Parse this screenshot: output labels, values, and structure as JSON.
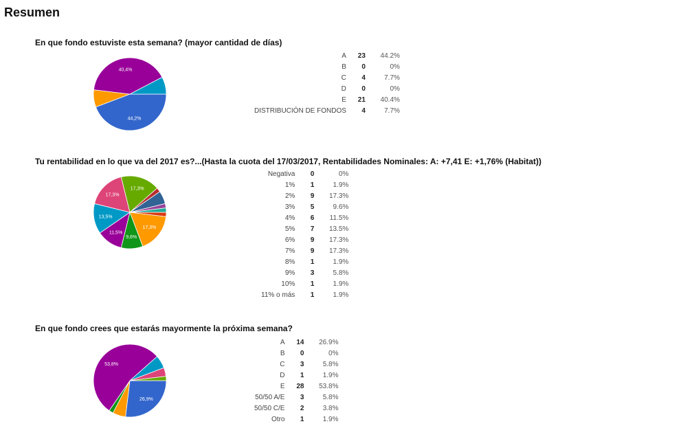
{
  "page": {
    "title": "Resumen"
  },
  "chart_data": [
    {
      "type": "pie",
      "title": "En que fondo estuviste esta semana? (mayor cantidad de días)",
      "categories": [
        "A",
        "B",
        "C",
        "D",
        "E",
        "DISTRIBUCIÓN DE FONDOS"
      ],
      "values": [
        23,
        0,
        4,
        0,
        21,
        4
      ],
      "percents": [
        "44.2%",
        "0%",
        "7.7%",
        "0%",
        "40.4%",
        "7.7%"
      ],
      "slice_labels": [
        "44,2%",
        "",
        "",
        "",
        "40,4%",
        ""
      ],
      "colors": [
        "#3366cc",
        "#dc3912",
        "#ff9900",
        "#109618",
        "#990099",
        "#0099c6"
      ]
    },
    {
      "type": "pie",
      "title": "Tu rentabilidad en lo que va del 2017 es?...(Hasta la cuota del 17/03/2017, Rentabilidades Nominales: A: +7,41 E: +1,76% (Habitat))",
      "categories": [
        "Negativa",
        "1%",
        "2%",
        "3%",
        "4%",
        "5%",
        "6%",
        "7%",
        "8%",
        "9%",
        "10%",
        "11% o más"
      ],
      "values": [
        0,
        1,
        9,
        5,
        6,
        7,
        9,
        9,
        1,
        3,
        1,
        1
      ],
      "percents": [
        "0%",
        "1.9%",
        "17.3%",
        "9.6%",
        "11.5%",
        "13.5%",
        "17.3%",
        "17.3%",
        "1.9%",
        "5.8%",
        "1.9%",
        "1.9%"
      ],
      "slice_labels": [
        "",
        "",
        "17,3%",
        "9,6%",
        "11,5%",
        "13,5%",
        "17,3%",
        "17,3%",
        "",
        "",
        "",
        ""
      ],
      "colors": [
        "#3366cc",
        "#dc3912",
        "#ff9900",
        "#109618",
        "#990099",
        "#0099c6",
        "#dd4477",
        "#66aa00",
        "#b82e2e",
        "#316395",
        "#994499",
        "#22aa99"
      ]
    },
    {
      "type": "pie",
      "title": "En que fondo crees que estarás mayormente la próxima semana?",
      "categories": [
        "A",
        "B",
        "C",
        "D",
        "E",
        "50/50 A/E",
        "50/50 C/E",
        "Otro"
      ],
      "values": [
        14,
        0,
        3,
        1,
        28,
        3,
        2,
        1
      ],
      "percents": [
        "26.9%",
        "0%",
        "5.8%",
        "1.9%",
        "53.8%",
        "5.8%",
        "3.8%",
        "1.9%"
      ],
      "slice_labels": [
        "26,9%",
        "",
        "",
        "",
        "53,8%",
        "",
        "",
        ""
      ],
      "colors": [
        "#3366cc",
        "#dc3912",
        "#ff9900",
        "#109618",
        "#990099",
        "#0099c6",
        "#dd4477",
        "#66aa00"
      ]
    }
  ]
}
